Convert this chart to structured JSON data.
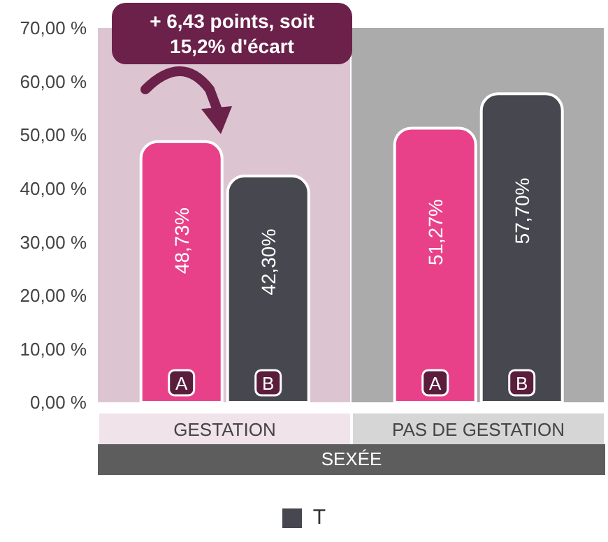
{
  "chart_data": {
    "type": "bar",
    "categories": [
      "GESTATION",
      "PAS DE GESTATION"
    ],
    "xlabel": "SEXÉE",
    "series": [
      {
        "color": "#e8418a",
        "values": [
          48.73,
          51.27
        ],
        "value_labels": [
          "48,73%",
          "51,27%"
        ]
      },
      {
        "name": "T",
        "color": "#47474f",
        "values": [
          42.3,
          57.7
        ],
        "value_labels": [
          "42,30%",
          "57,70%"
        ]
      }
    ],
    "ylim": [
      0,
      70
    ],
    "yticks": [
      {
        "value": 0,
        "label": "0,00 %"
      },
      {
        "value": 10,
        "label": "10,00 %"
      },
      {
        "value": 20,
        "label": "20,00 %"
      },
      {
        "value": 30,
        "label": "30,00 %"
      },
      {
        "value": 40,
        "label": "40,00 %"
      },
      {
        "value": 50,
        "label": "50,00 %"
      },
      {
        "value": 60,
        "label": "60,00 %"
      },
      {
        "value": 70,
        "label": "70,00 %"
      }
    ],
    "annotations": [
      "+ 6,43 points, soit 15,2% d'écart",
      "A",
      "B",
      "A",
      "B"
    ],
    "bands": [
      {
        "axis": "x",
        "from": "GESTATION",
        "to": "GESTATION",
        "color": "#dcc5d1"
      },
      {
        "axis": "x",
        "from": "PAS DE GESTATION",
        "to": "PAS DE GESTATION",
        "color": "#ababab"
      }
    ],
    "grid": false,
    "legend": "bottom"
  }
}
